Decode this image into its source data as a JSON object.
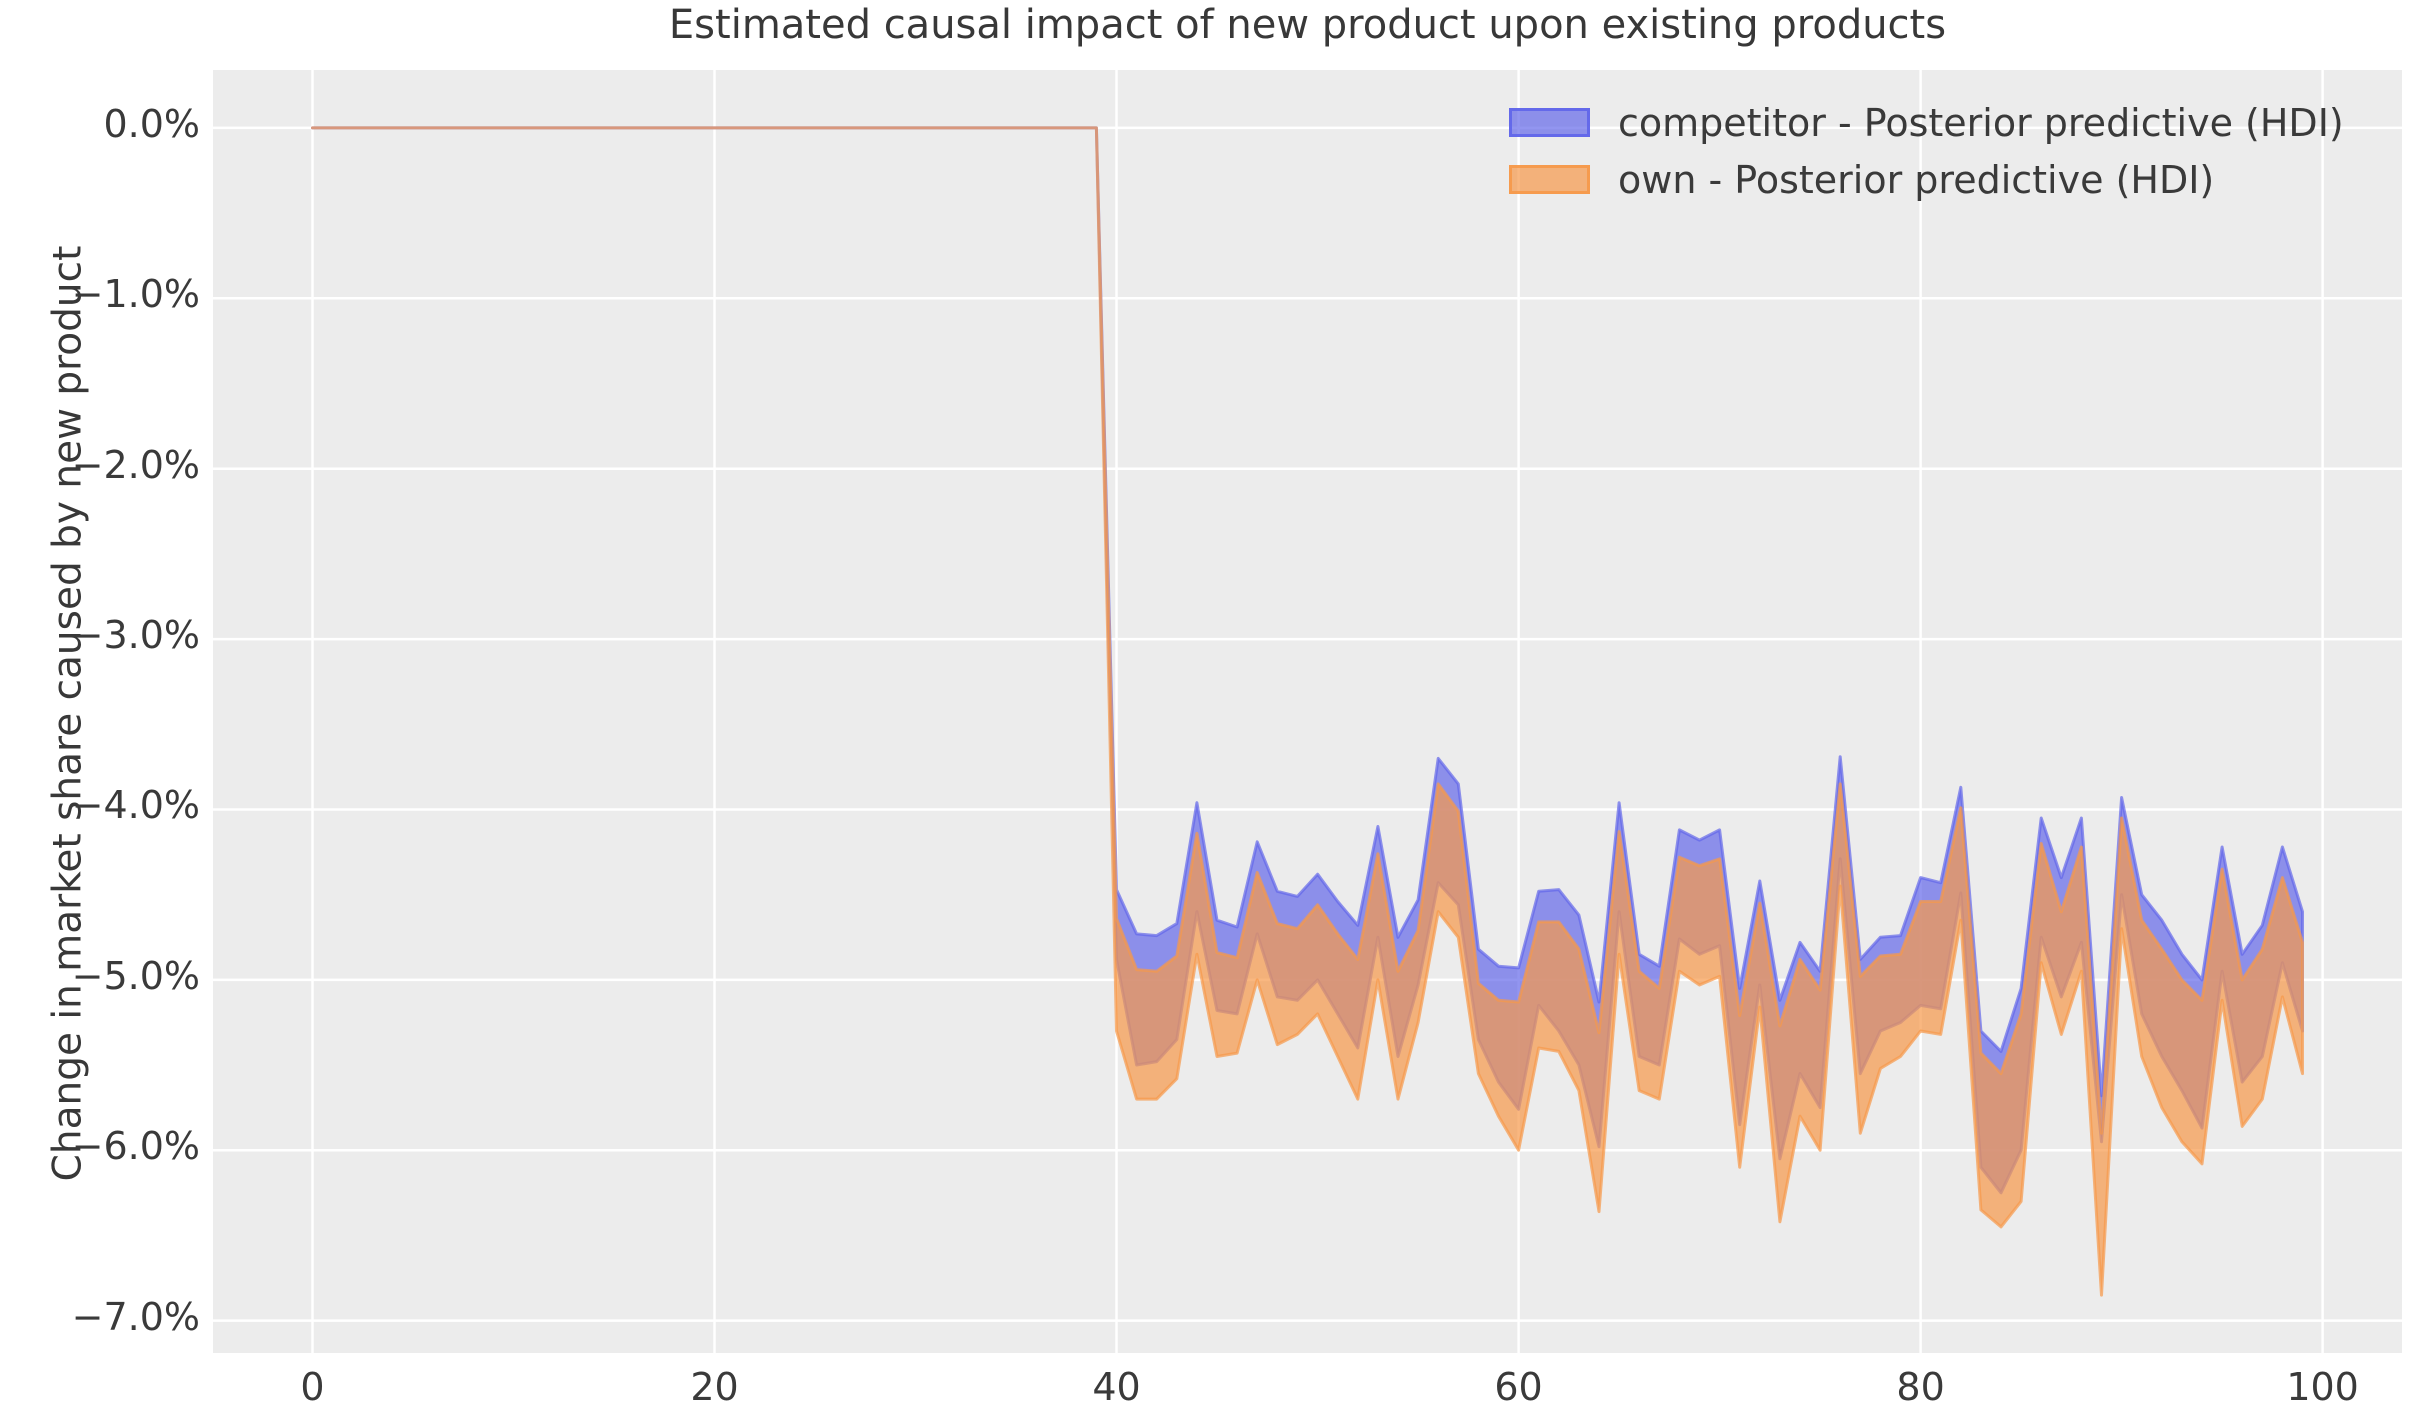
{
  "title": "Estimated causal impact of new product upon existing products",
  "ylabel": "Change in market share caused by new product",
  "figure": {
    "background": "#ffffff",
    "axes_background": "#ececec",
    "grid_color": "#ffffff",
    "text_color": "#3a3a3a"
  },
  "legend": {
    "items": [
      {
        "label": "competitor - Posterior predictive (HDI)",
        "color": "#6166e9",
        "fill_alpha": 0.69,
        "edge_alpha": 0.92
      },
      {
        "label": "own - Posterior predictive (HDI)",
        "color": "#f6994a",
        "fill_alpha": 0.7,
        "edge_alpha": 0.92
      }
    ]
  },
  "chart_data": {
    "type": "area",
    "title": "Estimated causal impact of new product upon existing products",
    "xlabel": "",
    "ylabel": "Change in market share caused by new product",
    "grid": true,
    "legend_position": "upper right",
    "xlim": [
      -4.95,
      103.95
    ],
    "ylim_percent": [
      -7.19,
      0.34
    ],
    "x_ticks": [
      {
        "value": 0,
        "label": "0"
      },
      {
        "value": 20,
        "label": "20"
      },
      {
        "value": 40,
        "label": "40"
      },
      {
        "value": 60,
        "label": "60"
      },
      {
        "value": 80,
        "label": "80"
      },
      {
        "value": 100,
        "label": "100"
      }
    ],
    "y_ticks": [
      {
        "value": 0,
        "label": "0.0%"
      },
      {
        "value": -1,
        "label": "−1.0%"
      },
      {
        "value": -2,
        "label": "−2.0%"
      },
      {
        "value": -3,
        "label": "−3.0%"
      },
      {
        "value": -4,
        "label": "−4.0%"
      },
      {
        "value": -5,
        "label": "−5.0%"
      },
      {
        "value": -6,
        "label": "−6.0%"
      },
      {
        "value": -7,
        "label": "−7.0%"
      }
    ],
    "treatment_time": 40,
    "x": [
      0,
      1,
      2,
      3,
      4,
      5,
      6,
      7,
      8,
      9,
      10,
      11,
      12,
      13,
      14,
      15,
      16,
      17,
      18,
      19,
      20,
      21,
      22,
      23,
      24,
      25,
      26,
      27,
      28,
      29,
      30,
      31,
      32,
      33,
      34,
      35,
      36,
      37,
      38,
      39,
      40,
      41,
      42,
      43,
      44,
      45,
      46,
      47,
      48,
      49,
      50,
      51,
      52,
      53,
      54,
      55,
      56,
      57,
      58,
      59,
      60,
      61,
      62,
      63,
      64,
      65,
      66,
      67,
      68,
      69,
      70,
      71,
      72,
      73,
      74,
      75,
      76,
      77,
      78,
      79,
      80,
      81,
      82,
      83,
      84,
      85,
      86,
      87,
      88,
      89,
      90,
      91,
      92,
      93,
      94,
      95,
      96,
      97,
      98,
      99
    ],
    "series": [
      {
        "name": "competitor - Posterior predictive (HDI)",
        "band": true,
        "color": "#6166e9",
        "fill_alpha": 0.69,
        "upper": [
          0,
          0,
          0,
          0,
          0,
          0,
          0,
          0,
          0,
          0,
          0,
          0,
          0,
          0,
          0,
          0,
          0,
          0,
          0,
          0,
          0,
          0,
          0,
          0,
          0,
          0,
          0,
          0,
          0,
          0,
          0,
          0,
          0,
          0,
          0,
          0,
          0,
          0,
          0,
          0,
          -4.47,
          -4.73,
          -4.74,
          -4.67,
          -3.96,
          -4.65,
          -4.69,
          -4.19,
          -4.48,
          -4.51,
          -4.38,
          -4.54,
          -4.68,
          -4.1,
          -4.75,
          -4.53,
          -3.7,
          -3.85,
          -4.82,
          -4.92,
          -4.93,
          -4.48,
          -4.47,
          -4.62,
          -5.13,
          -3.96,
          -4.85,
          -4.92,
          -4.12,
          -4.18,
          -4.12,
          -5.05,
          -4.42,
          -5.12,
          -4.78,
          -4.95,
          -3.69,
          -4.88,
          -4.75,
          -4.74,
          -4.4,
          -4.43,
          -3.87,
          -5.3,
          -5.42,
          -5.05,
          -4.05,
          -4.4,
          -4.05,
          -5.68,
          -3.93,
          -4.5,
          -4.65,
          -4.85,
          -5.0,
          -4.22,
          -4.85,
          -4.68,
          -4.22,
          -4.6
        ],
        "lower": [
          0,
          0,
          0,
          0,
          0,
          0,
          0,
          0,
          0,
          0,
          0,
          0,
          0,
          0,
          0,
          0,
          0,
          0,
          0,
          0,
          0,
          0,
          0,
          0,
          0,
          0,
          0,
          0,
          0,
          0,
          0,
          0,
          0,
          0,
          0,
          0,
          0,
          0,
          0,
          0,
          -4.88,
          -5.5,
          -5.48,
          -5.35,
          -4.6,
          -5.18,
          -5.2,
          -4.73,
          -5.1,
          -5.12,
          -5.0,
          -5.2,
          -5.4,
          -4.75,
          -5.45,
          -5.03,
          -4.43,
          -4.56,
          -5.35,
          -5.6,
          -5.76,
          -5.15,
          -5.3,
          -5.5,
          -5.98,
          -4.6,
          -5.45,
          -5.5,
          -4.76,
          -4.85,
          -4.8,
          -5.85,
          -5.03,
          -6.05,
          -5.55,
          -5.75,
          -4.29,
          -5.55,
          -5.3,
          -5.25,
          -5.15,
          -5.17,
          -4.49,
          -6.1,
          -6.25,
          -6.0,
          -4.75,
          -5.1,
          -4.78,
          -5.95,
          -4.5,
          -5.2,
          -5.45,
          -5.65,
          -5.87,
          -4.95,
          -5.6,
          -5.45,
          -4.9,
          -5.3
        ]
      },
      {
        "name": "own - Posterior predictive (HDI)",
        "band": true,
        "color": "#f6994a",
        "fill_alpha": 0.7,
        "upper": [
          0,
          0,
          0,
          0,
          0,
          0,
          0,
          0,
          0,
          0,
          0,
          0,
          0,
          0,
          0,
          0,
          0,
          0,
          0,
          0,
          0,
          0,
          0,
          0,
          0,
          0,
          0,
          0,
          0,
          0,
          0,
          0,
          0,
          0,
          0,
          0,
          0,
          0,
          0,
          0,
          -4.64,
          -4.94,
          -4.95,
          -4.86,
          -4.14,
          -4.84,
          -4.87,
          -4.37,
          -4.67,
          -4.7,
          -4.56,
          -4.73,
          -4.88,
          -4.26,
          -4.95,
          -4.71,
          -3.85,
          -4.01,
          -5.02,
          -5.12,
          -5.13,
          -4.66,
          -4.66,
          -4.82,
          -5.31,
          -4.13,
          -4.95,
          -5.05,
          -4.28,
          -4.33,
          -4.29,
          -5.21,
          -4.55,
          -5.27,
          -4.88,
          -5.06,
          -3.85,
          -4.98,
          -4.86,
          -4.85,
          -4.54,
          -4.54,
          -3.99,
          -5.43,
          -5.55,
          -5.2,
          -4.2,
          -4.6,
          -4.22,
          -5.9,
          -4.05,
          -4.65,
          -4.82,
          -5.0,
          -5.12,
          -4.35,
          -5.0,
          -4.82,
          -4.4,
          -4.78
        ],
        "lower": [
          0,
          0,
          0,
          0,
          0,
          0,
          0,
          0,
          0,
          0,
          0,
          0,
          0,
          0,
          0,
          0,
          0,
          0,
          0,
          0,
          0,
          0,
          0,
          0,
          0,
          0,
          0,
          0,
          0,
          0,
          0,
          0,
          0,
          0,
          0,
          0,
          0,
          0,
          0,
          0,
          -5.3,
          -5.7,
          -5.7,
          -5.58,
          -4.85,
          -5.45,
          -5.43,
          -5.0,
          -5.38,
          -5.32,
          -5.2,
          -5.45,
          -5.7,
          -5.0,
          -5.7,
          -5.25,
          -4.6,
          -4.75,
          -5.55,
          -5.8,
          -6.0,
          -5.4,
          -5.42,
          -5.65,
          -6.36,
          -4.85,
          -5.65,
          -5.7,
          -4.95,
          -5.03,
          -4.98,
          -6.1,
          -5.16,
          -6.42,
          -5.8,
          -6.0,
          -4.45,
          -5.9,
          -5.52,
          -5.45,
          -5.3,
          -5.32,
          -4.65,
          -6.35,
          -6.45,
          -6.3,
          -4.9,
          -5.32,
          -4.95,
          -6.85,
          -4.7,
          -5.45,
          -5.75,
          -5.95,
          -6.08,
          -5.12,
          -5.86,
          -5.7,
          -5.1,
          -5.55
        ]
      }
    ]
  }
}
